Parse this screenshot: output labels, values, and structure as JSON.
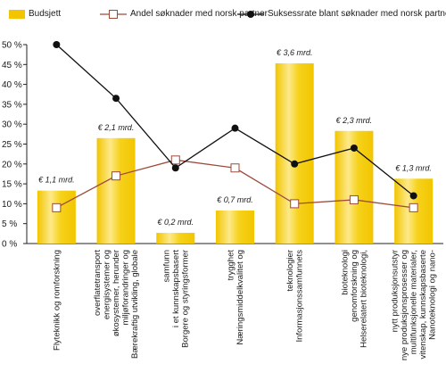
{
  "colors": {
    "bar_fill": "#f2c500",
    "bar_highlight": "#fde98a",
    "line_share": "#9c4a3c",
    "line_success": "#111111",
    "axis": "#222222"
  },
  "chart_data": {
    "type": "bar",
    "categories": [
      "Flyteknikk og romforskning",
      "Bærekraftig utvikling, globale miljøforandringer og økosystemer, herunder energisystemer og overflatetransport",
      "Borgere og styringsformer i et kunnskapsbasert samfunn",
      "Næringsmiddelkvalitet og trygghet",
      "Informasjonssamfunnets teknologier",
      "Helserelatert bioteknologi, genomforskning og bioteknologi",
      "Nanoteknologi og nano-vitenskap, kunnskapsbaserte multifunksjonelle materialer, nye produksjonsprosesser og nytt produksjonsutstyr"
    ],
    "category_lines": [
      [
        "Flyteknikk og romforskning"
      ],
      [
        "Bærekraftig utvikling, globale",
        "miljøforandringer og",
        "økosystemer, herunder",
        "energisystemer og",
        "overflatetransport"
      ],
      [
        "Borgere og styringsformer",
        "i et kunnskapsbasert",
        "samfunn"
      ],
      [
        "Næringsmiddelkvalitet og",
        "trygghet"
      ],
      [
        "Informasjonssamfunnets",
        "teknologier"
      ],
      [
        "Helserelatert bioteknologi,",
        "genomforskning og",
        "bioteknologi"
      ],
      [
        "Nanoteknologi og nano-",
        "vitenskap, kunnskapsbaserte",
        "multifunksjonelle materialer,",
        "nye produksjonsprosesser og",
        "nytt produksjonsutstyr"
      ]
    ],
    "series": [
      {
        "name": "Budsjett",
        "type": "bar",
        "values": [
          13.3,
          26.5,
          2.7,
          8.3,
          45.3,
          28.3,
          16.3
        ],
        "labels": [
          "€ 1,1 mrd.",
          "€ 2,1 mrd.",
          "€ 0,2 mrd.",
          "€ 0,7 mrd.",
          "€ 3,6 mrd.",
          "€ 2,3 mrd.",
          "€ 1,3 mrd."
        ]
      },
      {
        "name": "Andel søknader med norsk partner",
        "type": "line",
        "values": [
          9,
          17,
          21,
          19,
          10,
          11,
          9
        ]
      },
      {
        "name": "Suksessrate blant søknader med norsk partner",
        "type": "line",
        "values": [
          50,
          36.5,
          19,
          29,
          20,
          24,
          12
        ]
      }
    ],
    "y_ticks": [
      "0 %",
      "5 %",
      "10 %",
      "15 %",
      "20 %",
      "25 %",
      "30 %",
      "35 %",
      "40 %",
      "45 %",
      "50 %"
    ],
    "ylim": [
      0,
      50
    ],
    "legend_position": "top",
    "grid": false
  }
}
